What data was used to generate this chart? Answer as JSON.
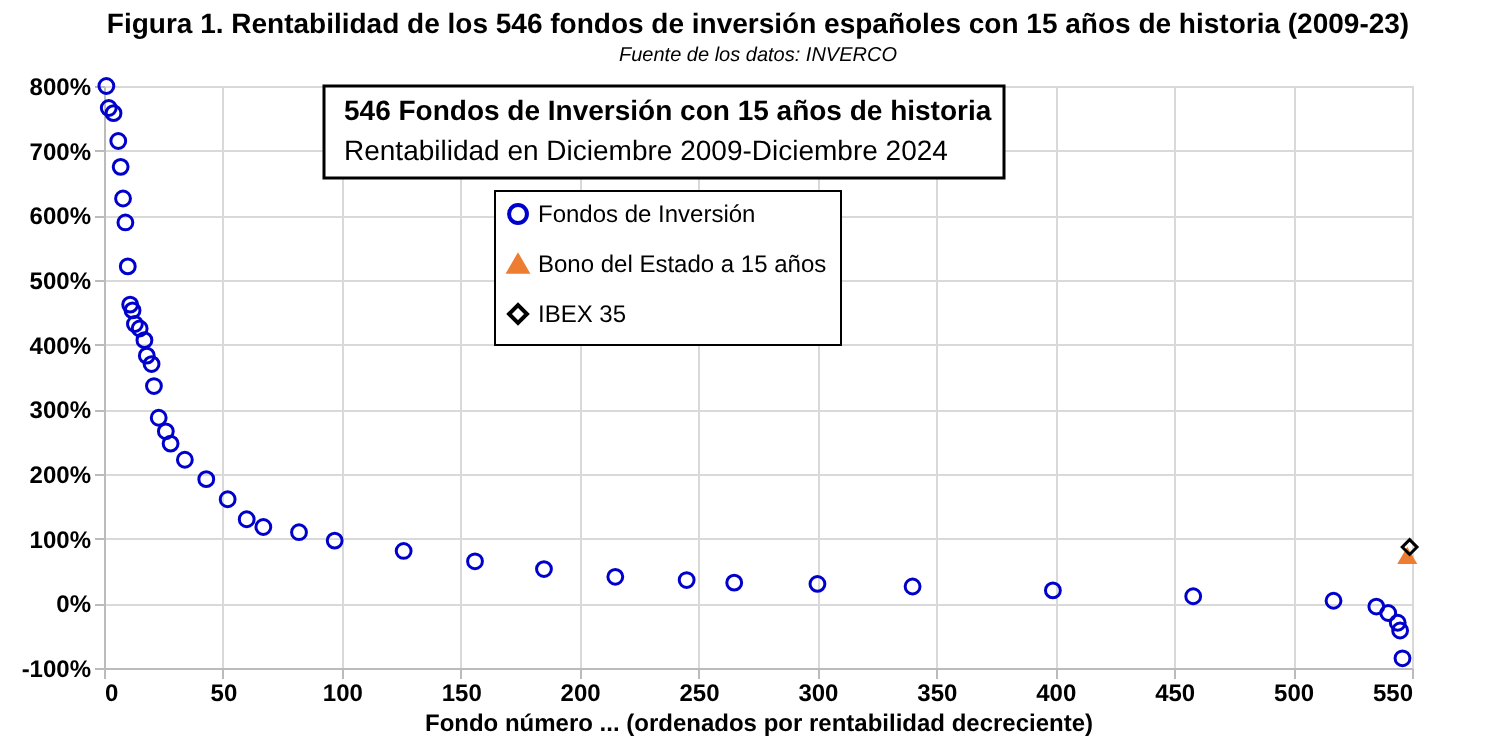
{
  "chart_data": {
    "type": "scatter",
    "title": "Figura 1. Rentabilidad de los 546 fondos de inversión españoles con 15 años de historia (2009-23)",
    "subtitle": "Fuente de los datos: INVERCO",
    "xlabel": "Fondo número ... (ordenados por rentabilidad decreciente)",
    "annotations": [
      "546 Fondos de Inversión con 15 años de historia",
      "Rentabilidad en Diciembre 2009-Diciembre 2024"
    ],
    "series": [
      {
        "name": "Fondos de Inversión",
        "color": "#0000cc",
        "marker": "circle",
        "x": [
          1,
          2,
          4,
          6,
          7,
          8,
          9,
          10,
          11,
          12,
          13,
          15,
          17,
          18,
          20,
          21,
          23,
          26,
          28,
          34,
          43,
          52,
          60,
          67,
          82,
          97,
          126,
          156,
          185,
          215,
          245,
          265,
          300,
          340,
          399,
          458,
          517,
          535,
          540,
          544,
          545,
          546
        ],
        "values": [
          800,
          766,
          758,
          715,
          675,
          626,
          589,
          521,
          462,
          453,
          432,
          425,
          407,
          383,
          370,
          336,
          287,
          266,
          247,
          222,
          192,
          161,
          130,
          118,
          110,
          97,
          81,
          65,
          53,
          41,
          36,
          32,
          30,
          26,
          20,
          11,
          4,
          -5,
          -15,
          -30,
          -42,
          -85
        ]
      },
      {
        "name": "Bono del Estado a 15 años",
        "color": "#ed7d31",
        "marker": "triangle",
        "x": [
          548
        ],
        "values": [
          73
        ]
      },
      {
        "name": "IBEX 35",
        "color": "#000000",
        "marker": "diamond",
        "x": [
          549
        ],
        "values": [
          87
        ]
      }
    ],
    "xlim": [
      0,
      550
    ],
    "xticks": [
      0,
      50,
      100,
      150,
      200,
      250,
      300,
      350,
      400,
      450,
      500,
      550
    ],
    "ylim": [
      -100,
      800
    ],
    "yticks": [
      {
        "value": -100,
        "label": "-100%"
      },
      {
        "value": 0,
        "label": "0%"
      },
      {
        "value": 100,
        "label": "100%"
      },
      {
        "value": 200,
        "label": "200%"
      },
      {
        "value": 300,
        "label": "300%"
      },
      {
        "value": 400,
        "label": "400%"
      },
      {
        "value": 500,
        "label": "500%"
      },
      {
        "value": 600,
        "label": "600%"
      },
      {
        "value": 700,
        "label": "700%"
      },
      {
        "value": 800,
        "label": "800%"
      }
    ],
    "grid": true,
    "legend": "top"
  }
}
